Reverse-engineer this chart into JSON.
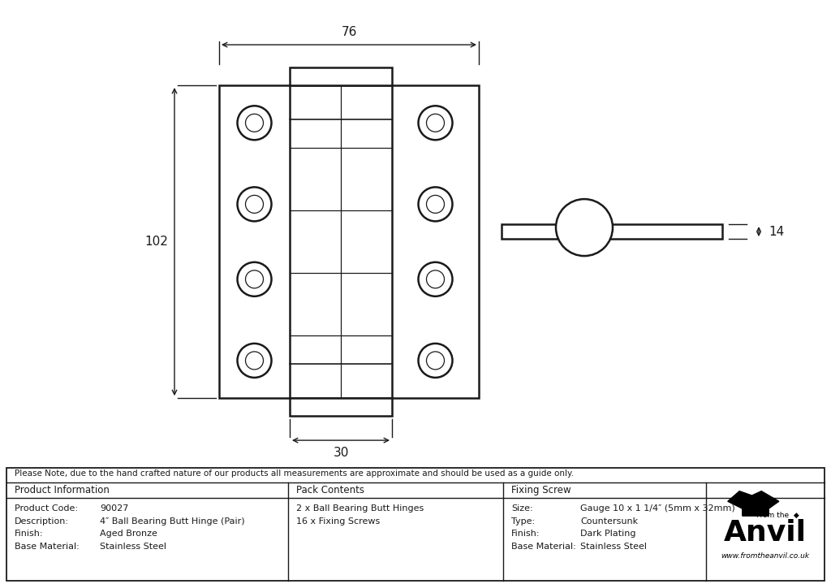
{
  "bg_color": "#ffffff",
  "line_color": "#1a1a1a",
  "note_text": "Please Note, due to the hand crafted nature of our products all measurements are approximate and should be used as a guide only.",
  "product_code": "90027",
  "description": "4″ Ball Bearing Butt Hinge (Pair)",
  "finish": "Aged Bronze",
  "base_material": "Stainless Steel",
  "pack_line1": "2 x Ball Bearing Butt Hinges",
  "pack_line2": "16 x Fixing Screws",
  "screw_size": "Gauge 10 x 1 1/4″ (5mm x 32mm)",
  "screw_type": "Countersunk",
  "screw_finish": "Dark Plating",
  "screw_base": "Stainless Steel",
  "dim_width": "76",
  "dim_height": "102",
  "dim_knuckle": "30",
  "dim_thickness": "14"
}
